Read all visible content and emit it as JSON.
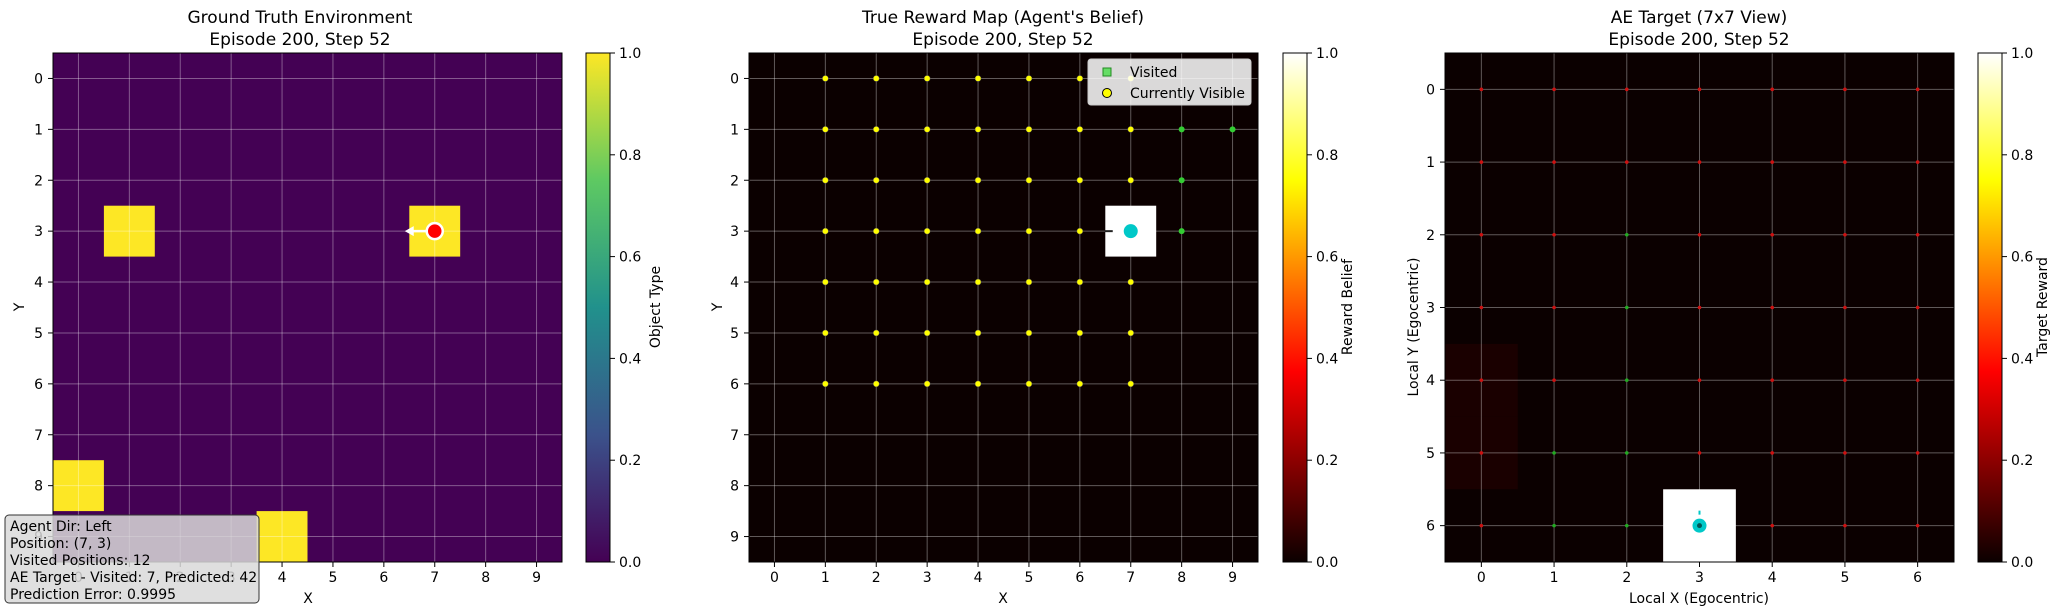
{
  "chart_data": [
    {
      "type": "heatmap",
      "title": "Ground Truth Environment",
      "subtitle": "Episode 200, Step 52",
      "xlabel": "X",
      "ylabel": "Y",
      "xlim": [
        -0.5,
        9.5
      ],
      "ylim": [
        9.5,
        -0.5
      ],
      "x_ticks": [
        "0",
        "1",
        "2",
        "3",
        "4",
        "5",
        "6",
        "7",
        "8",
        "9"
      ],
      "y_ticks": [
        "0",
        "1",
        "2",
        "3",
        "4",
        "5",
        "6",
        "7",
        "8",
        "9"
      ],
      "grid": true,
      "colormap": "viridis",
      "background_value": 0.0,
      "objects": [
        {
          "x": 1,
          "y": 3,
          "value": 1.0
        },
        {
          "x": 7,
          "y": 3,
          "value": 1.0
        },
        {
          "x": 0,
          "y": 8,
          "value": 1.0
        },
        {
          "x": 4,
          "y": 9,
          "value": 1.0
        }
      ],
      "agent": {
        "x": 7,
        "y": 3,
        "direction": "Left",
        "color": "#ff0000"
      },
      "colorbar": {
        "label": "Object Type",
        "min": 0.0,
        "max": 1.0,
        "ticks": [
          "0.0",
          "0.2",
          "0.4",
          "0.6",
          "0.8",
          "1.0"
        ]
      },
      "info_box": [
        "Agent Dir: Left",
        "Position: (7, 3)",
        "Visited Positions: 12",
        "AE Target - Visited: 7, Predicted: 42",
        "Prediction Error: 0.9995"
      ]
    },
    {
      "type": "heatmap",
      "title": "True Reward Map (Agent's Belief)",
      "subtitle": "Episode 200, Step 52",
      "xlabel": "X",
      "ylabel": "Y",
      "xlim": [
        -0.5,
        9.5
      ],
      "ylim": [
        9.5,
        -0.5
      ],
      "x_ticks": [
        "0",
        "1",
        "2",
        "3",
        "4",
        "5",
        "6",
        "7",
        "8",
        "9"
      ],
      "y_ticks": [
        "0",
        "1",
        "2",
        "3",
        "4",
        "5",
        "6",
        "7",
        "8",
        "9"
      ],
      "grid": true,
      "colormap": "hot",
      "background_value": 0.0,
      "high_cells": [
        {
          "x": 7,
          "y": 3,
          "value": 1.0
        }
      ],
      "agent": {
        "x": 7,
        "y": 3,
        "direction": "Left",
        "color": "#00c8c8"
      },
      "visible_rows": [
        0,
        1,
        2,
        3,
        4,
        5,
        6
      ],
      "visible_cols": [
        1,
        2,
        3,
        4,
        5,
        6,
        7
      ],
      "visited": [
        [
          8,
          1
        ],
        [
          9,
          1
        ],
        [
          8,
          2
        ],
        [
          8,
          3
        ]
      ],
      "legend": {
        "position": "upper right",
        "entries": [
          "Visited",
          "Currently Visible"
        ]
      },
      "colorbar": {
        "label": "Reward Belief",
        "min": 0.0,
        "max": 1.0,
        "ticks": [
          "0.0",
          "0.2",
          "0.4",
          "0.6",
          "0.8",
          "1.0"
        ]
      }
    },
    {
      "type": "heatmap",
      "title": "AE Target (7x7 View)",
      "subtitle": "Episode 200, Step 52",
      "xlabel": "Local X (Egocentric)",
      "ylabel": "Local Y (Egocentric)",
      "xlim": [
        -0.5,
        6.5
      ],
      "ylim": [
        6.5,
        -0.5
      ],
      "x_ticks": [
        "0",
        "1",
        "2",
        "3",
        "4",
        "5",
        "6"
      ],
      "y_ticks": [
        "0",
        "1",
        "2",
        "3",
        "4",
        "5",
        "6"
      ],
      "grid": true,
      "colormap": "hot",
      "high_cells": [
        {
          "x": 3,
          "y": 6,
          "value": 1.0
        }
      ],
      "faint_cells": [
        {
          "x": 0,
          "y": 4,
          "value": 0.03
        },
        {
          "x": 0,
          "y": 5,
          "value": 0.03
        }
      ],
      "agent": {
        "x": 3,
        "y": 6,
        "color": "#00c8c8"
      },
      "green_marks": [
        [
          2,
          2
        ],
        [
          2,
          3
        ],
        [
          2,
          4
        ],
        [
          2,
          5
        ],
        [
          1,
          5
        ],
        [
          2,
          6
        ],
        [
          1,
          6
        ]
      ],
      "colorbar": {
        "label": "Target Reward",
        "min": 0.0,
        "max": 1.0,
        "ticks": [
          "0.0",
          "0.2",
          "0.4",
          "0.6",
          "0.8",
          "1.0"
        ]
      }
    }
  ]
}
